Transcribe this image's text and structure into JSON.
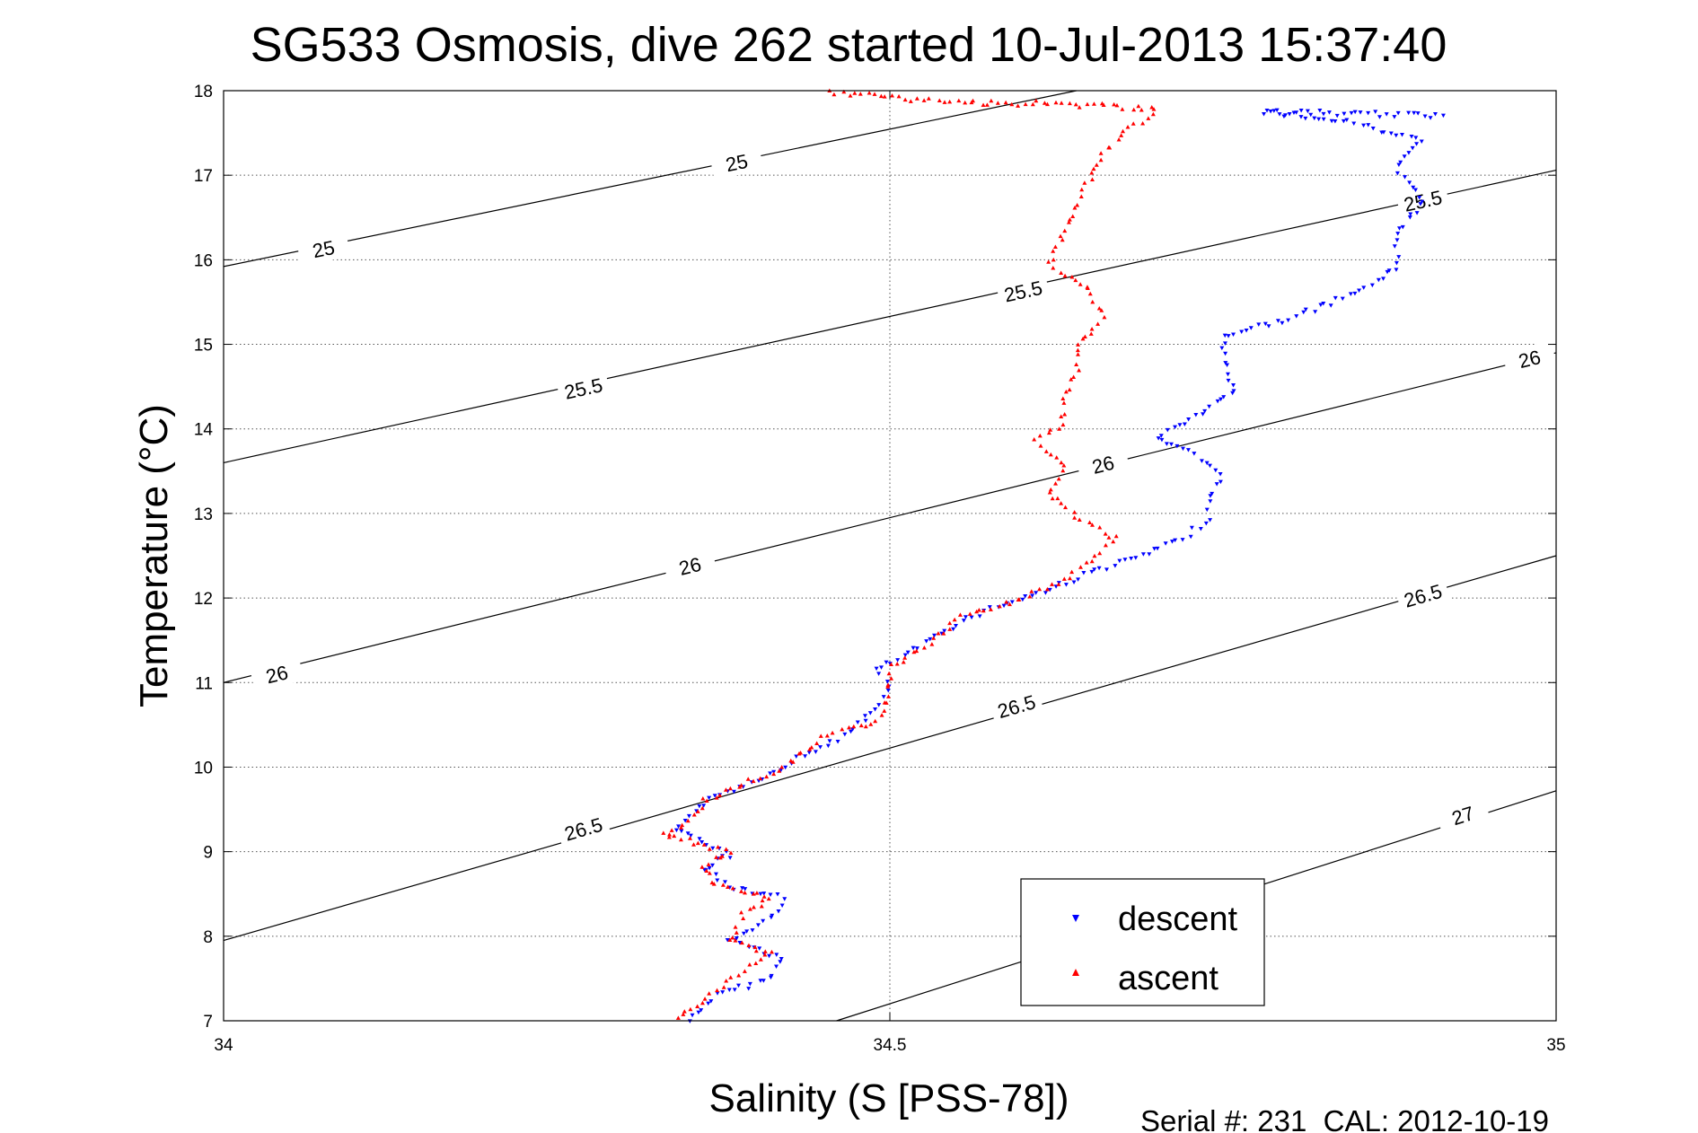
{
  "chart_data": {
    "type": "scatter",
    "title": "SG533 Osmosis, dive 262 started 10-Jul-2013 15:37:40",
    "xlabel": "Salinity (S [PSS-78])",
    "ylabel": "Temperature (°C)",
    "xlim": [
      34,
      35
    ],
    "ylim": [
      7,
      18
    ],
    "xticks": [
      "34",
      "34.5",
      "35"
    ],
    "yticks": [
      "7",
      "8",
      "9",
      "10",
      "11",
      "12",
      "13",
      "14",
      "15",
      "16",
      "17",
      "18"
    ],
    "grid": true,
    "legend_position": "bottom-right",
    "footer": "Serial #: 231  CAL: 2012-10-19",
    "colors": {
      "descent": "#0000ff",
      "ascent": "#ff0000",
      "contour": "#000000"
    },
    "contours": [
      {
        "sigma": 25,
        "line": [
          [
            34,
            15.92
          ],
          [
            34.64,
            18
          ]
        ],
        "labels": [
          {
            "text": "25",
            "s": 34.075,
            "t": 16.13
          },
          {
            "text": "25",
            "s": 34.385,
            "t": 17.15
          }
        ]
      },
      {
        "sigma": 25.5,
        "line": [
          [
            34,
            13.6
          ],
          [
            35,
            17.06
          ]
        ],
        "labels": [
          {
            "text": "25.5",
            "s": 34.27,
            "t": 14.48
          },
          {
            "text": "25.5",
            "s": 34.6,
            "t": 15.63
          },
          {
            "text": "25.5",
            "s": 34.9,
            "t": 16.7
          }
        ]
      },
      {
        "sigma": 26,
        "line": [
          [
            34,
            11.0
          ],
          [
            35,
            14.9
          ]
        ],
        "labels": [
          {
            "text": "26",
            "s": 34.04,
            "t": 11.1
          },
          {
            "text": "26",
            "s": 34.35,
            "t": 12.38
          },
          {
            "text": "26",
            "s": 34.66,
            "t": 13.58
          },
          {
            "text": "26",
            "s": 34.98,
            "t": 14.83
          }
        ]
      },
      {
        "sigma": 26.5,
        "line": [
          [
            34,
            7.95
          ],
          [
            35,
            12.5
          ]
        ],
        "labels": [
          {
            "text": "26.5",
            "s": 34.27,
            "t": 9.27
          },
          {
            "text": "26.5",
            "s": 34.595,
            "t": 10.72
          },
          {
            "text": "26.5",
            "s": 34.9,
            "t": 12.03
          }
        ]
      },
      {
        "sigma": 27,
        "line": [
          [
            34.46,
            7.0
          ],
          [
            35,
            9.72
          ]
        ],
        "labels": [
          {
            "text": "27",
            "s": 34.93,
            "t": 9.43
          }
        ]
      }
    ],
    "series": [
      {
        "name": "descent",
        "marker": "triangle-down",
        "path": [
          [
            34.35,
            7.0
          ],
          [
            34.37,
            7.3
          ],
          [
            34.41,
            7.5
          ],
          [
            34.42,
            7.75
          ],
          [
            34.38,
            7.95
          ],
          [
            34.41,
            8.2
          ],
          [
            34.42,
            8.45
          ],
          [
            34.38,
            8.6
          ],
          [
            34.36,
            8.8
          ],
          [
            34.38,
            8.95
          ],
          [
            34.36,
            9.1
          ],
          [
            34.34,
            9.25
          ],
          [
            34.35,
            9.45
          ],
          [
            34.37,
            9.65
          ],
          [
            34.4,
            9.85
          ],
          [
            34.43,
            10.1
          ],
          [
            34.47,
            10.4
          ],
          [
            34.49,
            10.7
          ],
          [
            34.5,
            10.95
          ],
          [
            34.49,
            11.15
          ],
          [
            34.51,
            11.3
          ],
          [
            34.53,
            11.5
          ],
          [
            34.55,
            11.7
          ],
          [
            34.58,
            11.9
          ],
          [
            34.62,
            12.1
          ],
          [
            34.65,
            12.3
          ],
          [
            34.69,
            12.5
          ],
          [
            34.72,
            12.7
          ],
          [
            34.74,
            12.95
          ],
          [
            34.74,
            13.2
          ],
          [
            34.75,
            13.45
          ],
          [
            34.73,
            13.7
          ],
          [
            34.7,
            13.9
          ],
          [
            34.73,
            14.15
          ],
          [
            34.76,
            14.45
          ],
          [
            34.75,
            14.8
          ],
          [
            34.75,
            15.1
          ],
          [
            34.8,
            15.3
          ],
          [
            34.85,
            15.6
          ],
          [
            34.88,
            15.9
          ],
          [
            34.88,
            16.3
          ],
          [
            34.9,
            16.7
          ],
          [
            34.88,
            17.1
          ],
          [
            34.9,
            17.4
          ],
          [
            34.84,
            17.65
          ],
          [
            34.78,
            17.75
          ],
          [
            34.92,
            17.7
          ]
        ]
      },
      {
        "name": "ascent",
        "marker": "triangle-up",
        "path": [
          [
            34.34,
            7.05
          ],
          [
            34.37,
            7.35
          ],
          [
            34.39,
            7.6
          ],
          [
            34.41,
            7.8
          ],
          [
            34.38,
            7.95
          ],
          [
            34.39,
            8.25
          ],
          [
            34.41,
            8.45
          ],
          [
            34.37,
            8.6
          ],
          [
            34.36,
            8.85
          ],
          [
            34.38,
            9.0
          ],
          [
            34.33,
            9.2
          ],
          [
            34.35,
            9.35
          ],
          [
            34.36,
            9.6
          ],
          [
            34.39,
            9.8
          ],
          [
            34.42,
            10.0
          ],
          [
            34.45,
            10.35
          ],
          [
            34.49,
            10.55
          ],
          [
            34.5,
            10.85
          ],
          [
            34.5,
            11.2
          ],
          [
            34.53,
            11.45
          ],
          [
            34.55,
            11.75
          ],
          [
            34.59,
            11.95
          ],
          [
            34.63,
            12.2
          ],
          [
            34.65,
            12.45
          ],
          [
            34.67,
            12.7
          ],
          [
            34.64,
            12.95
          ],
          [
            34.62,
            13.25
          ],
          [
            34.63,
            13.55
          ],
          [
            34.61,
            13.85
          ],
          [
            34.63,
            14.05
          ],
          [
            34.63,
            14.35
          ],
          [
            34.64,
            14.7
          ],
          [
            34.64,
            15.0
          ],
          [
            34.66,
            15.3
          ],
          [
            34.65,
            15.65
          ],
          [
            34.62,
            15.95
          ],
          [
            34.63,
            16.3
          ],
          [
            34.64,
            16.6
          ],
          [
            34.65,
            16.95
          ],
          [
            34.66,
            17.25
          ],
          [
            34.68,
            17.55
          ],
          [
            34.7,
            17.78
          ],
          [
            34.62,
            17.85
          ],
          [
            34.55,
            17.85
          ],
          [
            34.45,
            18.0
          ]
        ]
      }
    ]
  }
}
